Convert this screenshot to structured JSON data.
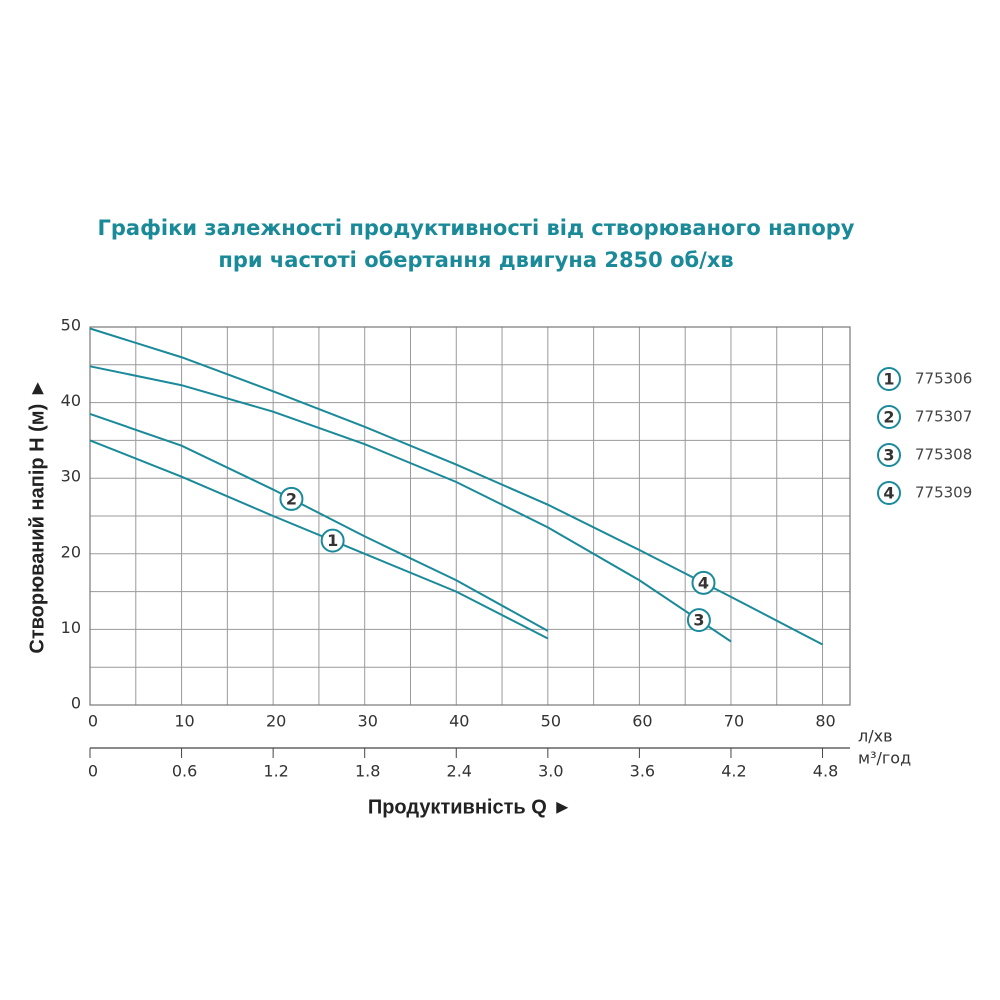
{
  "chart_data": {
    "type": "line",
    "title": "Графіки залежності продуктивності від створюваного напору",
    "subtitle": "при частоті обертання двигуна 2850 об/хв",
    "y_label": "Створюваний напір H (м) ►",
    "x_label": "Продуктивність  Q ►",
    "x_unit": "л/хв",
    "x2_unit": "м³/год",
    "xlim": [
      0,
      83
    ],
    "ylim": [
      0,
      50
    ],
    "xticks": [
      0,
      10,
      20,
      30,
      40,
      50,
      60,
      70,
      80
    ],
    "yticks": [
      0,
      10,
      20,
      30,
      40,
      50
    ],
    "x2lim": [
      0,
      4.98
    ],
    "x2ticks": [
      0,
      0.6,
      1.2,
      1.8,
      2.4,
      {
        "value": 3,
        "label": "3.0"
      },
      3.6,
      4.2,
      4.8
    ],
    "grid": true,
    "series": [
      {
        "name": "775306",
        "label": "1",
        "color": "#1a8a9a",
        "x": [
          0,
          10,
          20,
          30,
          40,
          50
        ],
        "values": [
          35,
          30.2,
          25,
          20,
          15,
          8.8
        ]
      },
      {
        "name": "775307",
        "label": "2",
        "color": "#1a8a9a",
        "x": [
          0,
          10,
          20,
          30,
          40,
          50
        ],
        "values": [
          38.5,
          34.3,
          28.5,
          22.3,
          16.5,
          9.8
        ]
      },
      {
        "name": "775308",
        "label": "3",
        "color": "#1a8a9a",
        "x": [
          0,
          10,
          20,
          30,
          40,
          50,
          60,
          70
        ],
        "values": [
          44.8,
          42.3,
          38.8,
          34.5,
          29.5,
          23.5,
          16.5,
          8.4
        ]
      },
      {
        "name": "775309",
        "label": "4",
        "color": "#1a8a9a",
        "x": [
          0,
          10,
          20,
          30,
          40,
          50,
          60,
          70,
          80
        ],
        "values": [
          49.8,
          46,
          41.5,
          36.8,
          31.8,
          26.5,
          20.5,
          14.3,
          8
        ]
      }
    ]
  }
}
